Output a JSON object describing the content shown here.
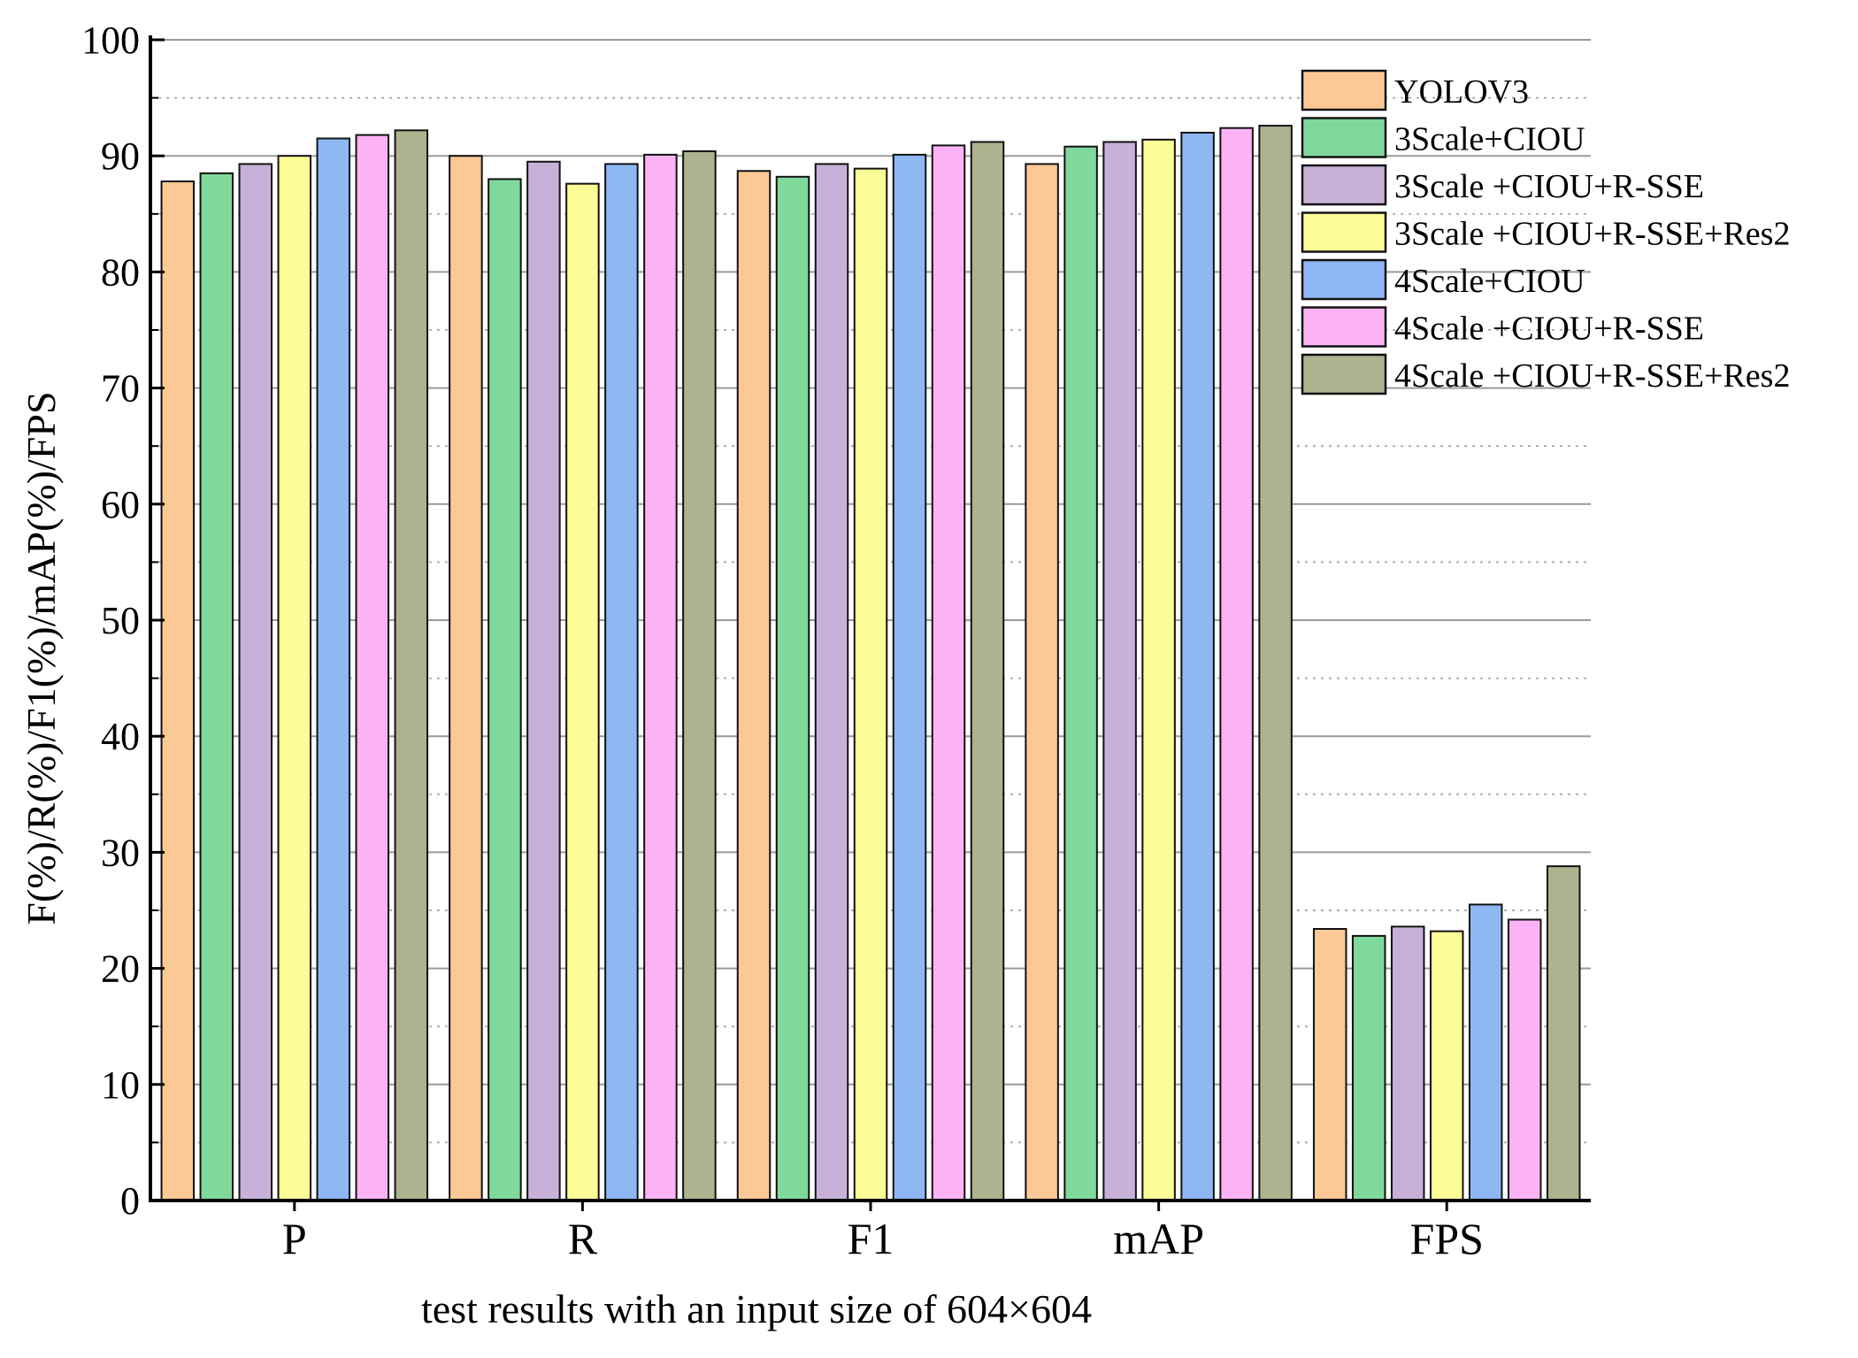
{
  "chart_data": {
    "type": "bar",
    "title": "",
    "xlabel": "test results with an input size of 604×604",
    "ylabel": "F(%)/R(%)/F1(%)/mAP(%)/FPS",
    "ylim": [
      0,
      100
    ],
    "yticks": [
      0,
      10,
      20,
      30,
      40,
      50,
      60,
      70,
      80,
      90,
      100
    ],
    "grid": true,
    "legend_position": "top-right",
    "categories": [
      "P",
      "R",
      "F1",
      "mAP",
      "FPS"
    ],
    "series": [
      {
        "name": "YOLOV3",
        "color": "#FCC995",
        "values": [
          87.8,
          90.0,
          88.7,
          89.3,
          23.4
        ]
      },
      {
        "name": "3Scale+CIOU",
        "color": "#7FD99B",
        "values": [
          88.5,
          88.0,
          88.2,
          90.8,
          22.8
        ]
      },
      {
        "name": "3Scale +CIOU+R-SSE",
        "color": "#C8B1D8",
        "values": [
          89.3,
          89.5,
          89.3,
          91.2,
          23.6
        ]
      },
      {
        "name": "3Scale +CIOU+R-SSE+Res2",
        "color": "#FDFD97",
        "values": [
          90.0,
          87.6,
          88.9,
          91.4,
          23.2
        ]
      },
      {
        "name": "4Scale+CIOU",
        "color": "#8DB8F4",
        "values": [
          91.5,
          89.3,
          90.1,
          92.0,
          25.5
        ]
      },
      {
        "name": "4Scale +CIOU+R-SSE",
        "color": "#FBB3F5",
        "values": [
          91.8,
          90.1,
          90.9,
          92.4,
          24.2
        ]
      },
      {
        "name": "4Scale +CIOU+R-SSE+Res2",
        "color": "#ADB38E",
        "values": [
          92.2,
          90.4,
          91.2,
          92.6,
          28.8
        ]
      }
    ]
  }
}
